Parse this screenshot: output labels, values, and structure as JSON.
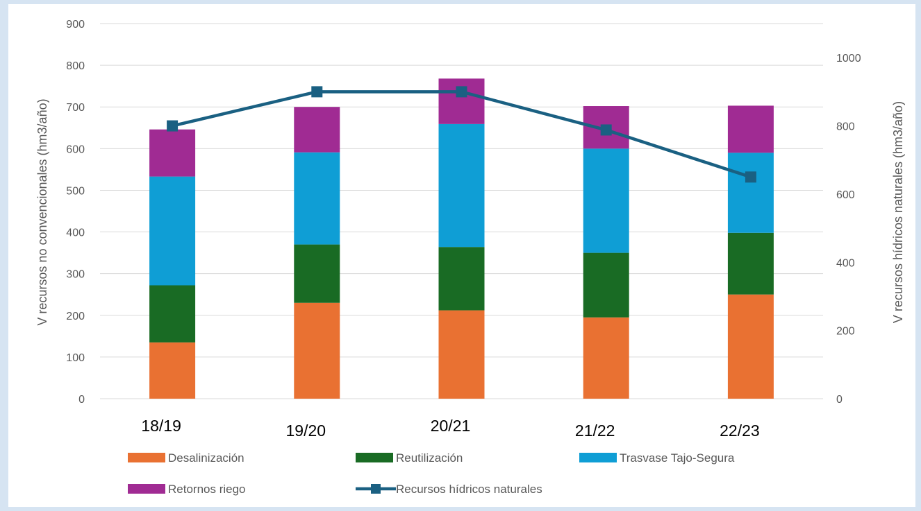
{
  "chart_data": {
    "type": "bar",
    "stacked": true,
    "categories": [
      "18/19",
      "19/20",
      "20/21",
      "21/22",
      "22/23"
    ],
    "series": [
      {
        "name": "Desalinización",
        "color": "#e97132",
        "values": [
          135,
          230,
          212,
          195,
          250
        ]
      },
      {
        "name": "Reutilización",
        "color": "#196b24",
        "values": [
          137,
          140,
          152,
          155,
          148
        ]
      },
      {
        "name": "Trasvase Tajo-Segura",
        "color": "#0f9ed5",
        "values": [
          261,
          221,
          295,
          250,
          192
        ]
      },
      {
        "name": "Retornos riego",
        "color": "#a02b93",
        "values": [
          113,
          109,
          109,
          102,
          113
        ]
      }
    ],
    "line_series": {
      "name": "Recursos hídricos naturales",
      "color": "#1a6082",
      "axis": "right",
      "values": [
        800,
        900,
        900,
        788,
        650
      ]
    },
    "ylabel": "V recursos  no convencionales (hm3/año)",
    "ylabel_right": "V recursos hídricos naturales (hm3/año)",
    "ylim": [
      0,
      900
    ],
    "yticks": [
      "0",
      "100",
      "200",
      "300",
      "400",
      "500",
      "600",
      "700",
      "800",
      "900"
    ],
    "ylim_right": [
      0,
      1100
    ],
    "yticks_right": [
      "0",
      "200",
      "400",
      "600",
      "800",
      "1000"
    ],
    "grid": true,
    "legend_position": "bottom"
  }
}
